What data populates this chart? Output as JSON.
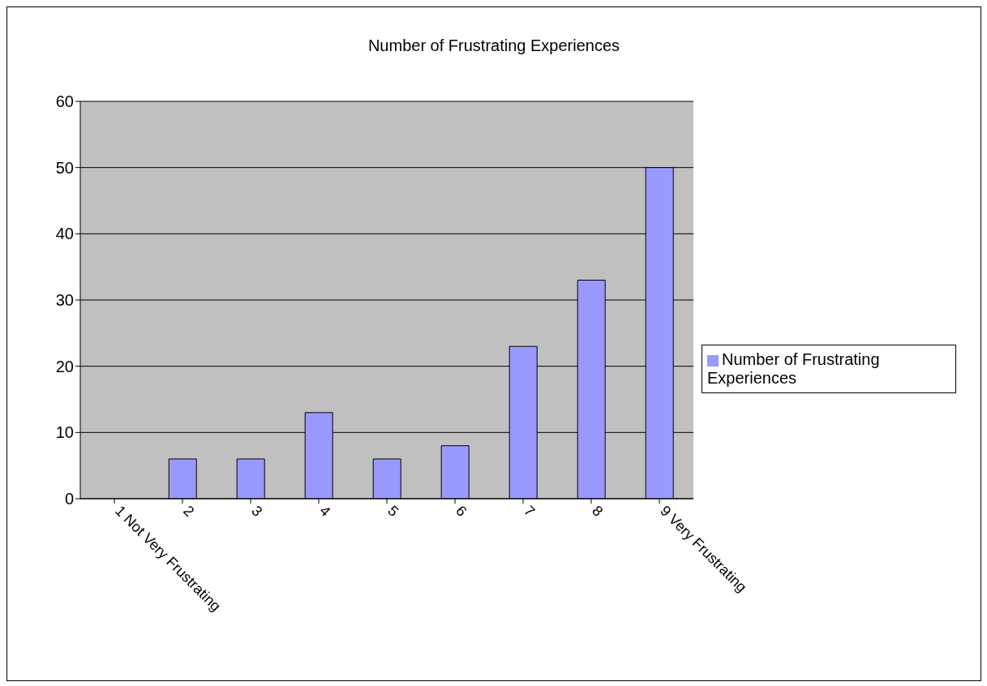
{
  "chart_data": {
    "type": "bar",
    "title": "Number of Frustrating Experiences",
    "categories": [
      "1 Not Very Frustrating",
      "2",
      "3",
      "4",
      "5",
      "6",
      "7",
      "8",
      "9 Very Frustrating"
    ],
    "series": [
      {
        "name": "Number of Frustrating Experiences",
        "color": "#9999ff",
        "values": [
          0,
          6,
          6,
          13,
          6,
          8,
          23,
          33,
          50
        ]
      }
    ],
    "ylim": [
      0,
      60
    ],
    "yticks": [
      0,
      10,
      20,
      30,
      40,
      50,
      60
    ],
    "grid": "y",
    "legend": "right"
  }
}
